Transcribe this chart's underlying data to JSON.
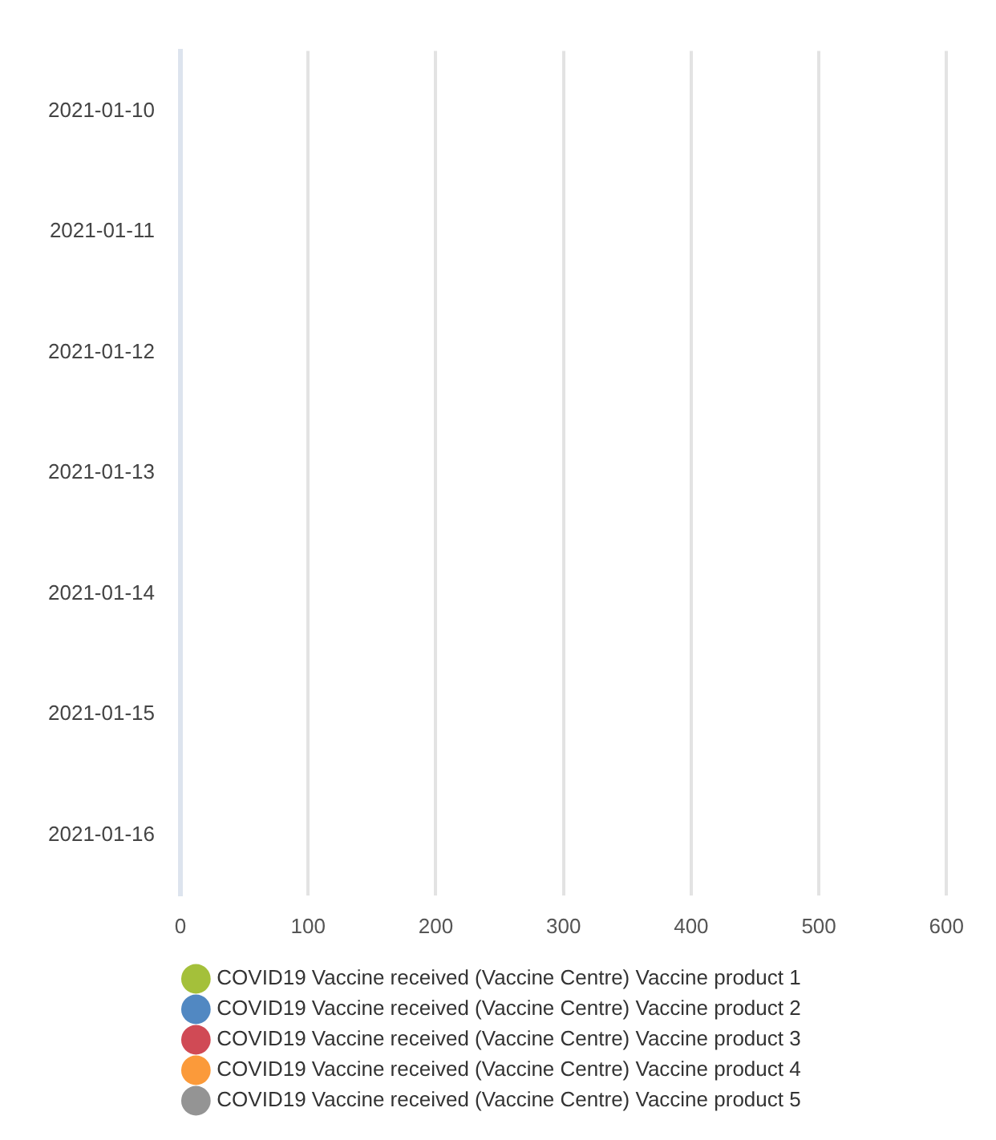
{
  "chart_data": {
    "type": "bar",
    "orientation": "horizontal",
    "categories": [
      "2021-01-10",
      "2021-01-11",
      "2021-01-12",
      "2021-01-13",
      "2021-01-14",
      "2021-01-15",
      "2021-01-16"
    ],
    "series": [
      {
        "name": "COVID19 Vaccine received (Vaccine Centre) Vaccine product 1",
        "color": "#a4c03a",
        "values": [
          null,
          null,
          null,
          null,
          null,
          null,
          null
        ]
      },
      {
        "name": "COVID19 Vaccine received (Vaccine Centre) Vaccine product 2",
        "color": "#5188c2",
        "values": [
          null,
          null,
          null,
          null,
          null,
          null,
          null
        ]
      },
      {
        "name": "COVID19 Vaccine received (Vaccine Centre) Vaccine product 3",
        "color": "#d04a55",
        "values": [
          null,
          null,
          null,
          null,
          null,
          null,
          null
        ]
      },
      {
        "name": "COVID19 Vaccine received (Vaccine Centre) Vaccine product 4",
        "color": "#fb9a3a",
        "values": [
          null,
          null,
          null,
          null,
          null,
          null,
          null
        ]
      },
      {
        "name": "COVID19 Vaccine received (Vaccine Centre) Vaccine product 5",
        "color": "#949494",
        "values": [
          null,
          null,
          null,
          null,
          null,
          null,
          null
        ]
      }
    ],
    "xlim": [
      0,
      600
    ],
    "xticks": [
      0,
      100,
      200,
      300,
      400,
      500,
      600
    ],
    "grid": "x",
    "legend": "bottom"
  }
}
